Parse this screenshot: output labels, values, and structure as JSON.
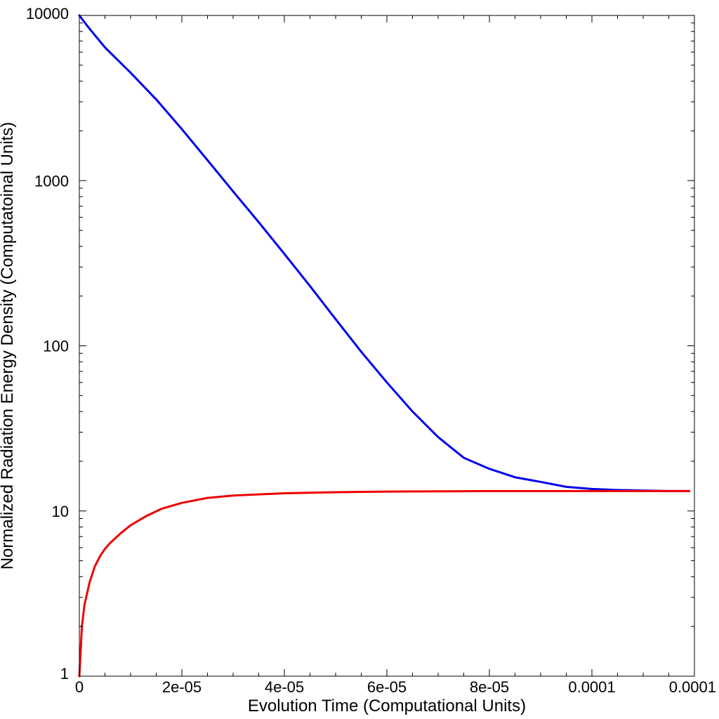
{
  "chart_data": {
    "type": "line",
    "title": "",
    "xlabel": "Evolution Time (Computational Units)",
    "ylabel": "Normalized Radiation Energy Density (Computatoinal Units)",
    "xscale": "linear",
    "yscale": "log",
    "xlim": [
      0,
      0.00012
    ],
    "ylim": [
      1,
      10000
    ],
    "grid": false,
    "legend": "none",
    "x_ticks": [
      {
        "value": 0,
        "label": "0"
      },
      {
        "value": 2e-05,
        "label": "2e-05"
      },
      {
        "value": 4e-05,
        "label": "4e-05"
      },
      {
        "value": 6e-05,
        "label": "6e-05"
      },
      {
        "value": 8e-05,
        "label": "8e-05"
      },
      {
        "value": 0.0001,
        "label": "0.0001"
      },
      {
        "value": 0.00012,
        "label": "0.0001"
      }
    ],
    "y_ticks": [
      {
        "value": 1,
        "label": "1"
      },
      {
        "value": 10,
        "label": "10"
      },
      {
        "value": 100,
        "label": "100"
      },
      {
        "value": 1000,
        "label": "1000"
      },
      {
        "value": 10000,
        "label": "10000"
      }
    ],
    "series": [
      {
        "color": "#0000ee",
        "x": [
          0,
          2e-06,
          5e-06,
          1e-05,
          1.5e-05,
          2e-05,
          2.5e-05,
          3e-05,
          3.5e-05,
          4e-05,
          4.5e-05,
          5e-05,
          5.5e-05,
          6e-05,
          6.5e-05,
          7e-05,
          7.5e-05,
          8e-05,
          8.5e-05,
          9e-05,
          9.5e-05,
          0.0001,
          0.000105,
          0.00011,
          0.000115,
          0.000119
        ],
        "y": [
          10000,
          8300,
          6400,
          4500,
          3100,
          2050,
          1330,
          860,
          560,
          360,
          230,
          145,
          92,
          60,
          40,
          28,
          21,
          18,
          16,
          15,
          14,
          13.6,
          13.4,
          13.3,
          13.2,
          13.2
        ]
      },
      {
        "color": "#ee0000",
        "x": [
          0,
          5e-07,
          1e-06,
          2e-06,
          3e-06,
          4e-06,
          5e-06,
          6e-06,
          8e-06,
          1e-05,
          1.3e-05,
          1.6e-05,
          2e-05,
          2.5e-05,
          3e-05,
          4e-05,
          5e-05,
          6e-05,
          7e-05,
          8e-05,
          9e-05,
          0.0001,
          0.00011,
          0.000119
        ],
        "y": [
          1,
          2,
          2.7,
          3.7,
          4.6,
          5.3,
          5.9,
          6.4,
          7.3,
          8.2,
          9.3,
          10.3,
          11.2,
          12,
          12.4,
          12.8,
          13,
          13.1,
          13.15,
          13.2,
          13.2,
          13.2,
          13.2,
          13.2
        ]
      }
    ]
  }
}
